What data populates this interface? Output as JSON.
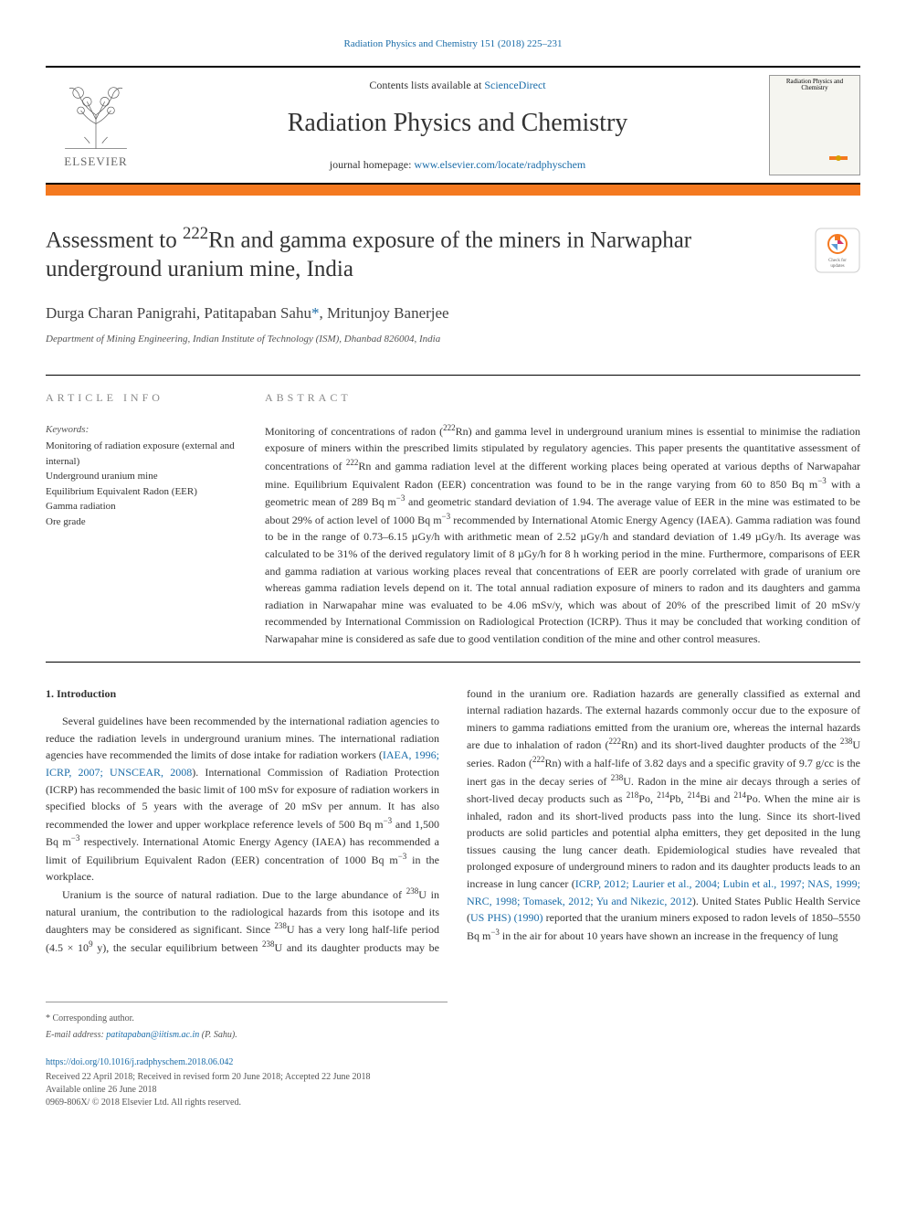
{
  "citation": "Radiation Physics and Chemistry 151 (2018) 225–231",
  "header": {
    "contents_pre": "Contents lists available at ",
    "contents_link": "ScienceDirect",
    "journal_name": "Radiation Physics and Chemistry",
    "homepage_pre": "journal homepage: ",
    "homepage_url": "www.elsevier.com/locate/radphyschem",
    "elsevier": "ELSEVIER",
    "cover_title": "Radiation Physics and Chemistry"
  },
  "title_html": "Assessment to <sup>222</sup>Rn and gamma exposure of the miners in Narwaphar underground uranium mine, India",
  "update_badge": "Check for updates",
  "authors_html": "Durga Charan Panigrahi, Patitapaban Sahu<span class=\"asterisk\">*</span>, Mritunjoy Banerjee",
  "affiliation": "Department of Mining Engineering, Indian Institute of Technology (ISM), Dhanbad 826004, India",
  "section_labels": {
    "article_info": "ARTICLE INFO",
    "abstract": "ABSTRACT"
  },
  "keywords": {
    "label": "Keywords:",
    "items": [
      "Monitoring of radiation exposure (external and internal)",
      "Underground uranium mine",
      "Equilibrium Equivalent Radon (EER)",
      "Gamma radiation",
      "Ore grade"
    ]
  },
  "abstract_html": "Monitoring of concentrations of radon (<sup>222</sup>Rn) and gamma level in underground uranium mines is essential to minimise the radiation exposure of miners within the prescribed limits stipulated by regulatory agencies. This paper presents the quantitative assessment of concentrations of <sup>222</sup>Rn and gamma radiation level at the different working places being operated at various depths of Narwapahar mine. Equilibrium Equivalent Radon (EER) concentration was found to be in the range varying from 60 to 850 Bq m<sup>−3</sup> with a geometric mean of 289 Bq m<sup>−3</sup> and geometric standard deviation of 1.94. The average value of EER in the mine was estimated to be about 29% of action level of 1000 Bq m<sup>−3</sup> recommended by International Atomic Energy Agency (IAEA). Gamma radiation was found to be in the range of 0.73–6.15 µGy/h with arithmetic mean of 2.52 µGy/h and standard deviation of 1.49 µGy/h. Its average was calculated to be 31% of the derived regulatory limit of 8 µGy/h for 8 h working period in the mine. Furthermore, comparisons of EER and gamma radiation at various working places reveal that concentrations of EER are poorly correlated with grade of uranium ore whereas gamma radiation levels depend on it. The total annual radiation exposure of miners to radon and its daughters and gamma radiation in Narwapahar mine was evaluated to be 4.06 mSv/y, which was about of 20% of the prescribed limit of 20 mSv/y recommended by International Commission on Radiological Protection (ICRP). Thus it may be concluded that working condition of Narwapahar mine is considered as safe due to good ventilation condition of the mine and other control measures.",
  "intro": {
    "heading": "1. Introduction",
    "p1_html": "Several guidelines have been recommended by the international radiation agencies to reduce the radiation levels in underground uranium mines. The international radiation agencies have recommended the limits of dose intake for radiation workers (<span class=\"cite-link\">IAEA, 1996; ICRP, 2007; UNSCEAR, 2008</span>). International Commission of Radiation Protection (ICRP) has recommended the basic limit of 100 mSv for exposure of radiation workers in specified blocks of 5 years with the average of 20 mSv per annum. It has also recommended the lower and upper workplace reference levels of 500 Bq m<sup>−3</sup> and 1,500 Bq m<sup>−3</sup> respectively. International Atomic Energy Agency (IAEA) has recommended a limit of Equilibrium Equivalent Radon (EER) concentration of 1000 Bq m<sup>−3</sup> in the workplace.",
    "p2_html": "Uranium is the source of natural radiation. Due to the large abundance of <sup>238</sup>U in natural uranium, the contribution to the radiological hazards from this isotope and its daughters may be considered as significant. Since <sup>238</sup>U has a very long half-life period (4.5 × 10<sup>9</sup> y), the secular equilibrium between <sup>238</sup>U and its daughter products may be found in the uranium ore. Radiation hazards are generally classified as external and internal radiation hazards. The external hazards commonly occur due to the exposure of miners to gamma radiations emitted from the uranium ore, whereas the internal hazards are due to inhalation of radon (<sup>222</sup>Rn) and its short-lived daughter products of the <sup>238</sup>U series. Radon (<sup>222</sup>Rn) with a half-life of 3.82 days and a specific gravity of 9.7 g/cc is the inert gas in the decay series of <sup>238</sup>U. Radon in the mine air decays through a series of short-lived decay products such as <sup>218</sup>Po, <sup>214</sup>Pb, <sup>214</sup>Bi and <sup>214</sup>Po. When the mine air is inhaled, radon and its short-lived products pass into the lung. Since its short-lived products are solid particles and potential alpha emitters, they get deposited in the lung tissues causing the lung cancer death. Epidemiological studies have revealed that prolonged exposure of underground miners to radon and its daughter products leads to an increase in lung cancer (<span class=\"cite-link\">ICRP, 2012; Laurier et al., 2004; Lubin et al., 1997; NAS, 1999; NRC, 1998; Tomasek, 2012; Yu and Nikezic, 2012</span>). United States Public Health Service (<span class=\"cite-link\">US PHS) (1990)</span> reported that the uranium miners exposed to radon levels of 1850–5550 Bq m<sup>−3</sup> in the air for about 10 years have shown an increase in the frequency of lung"
  },
  "footer": {
    "corr": "* Corresponding author.",
    "email_label": "E-mail address: ",
    "email": "patitapaban@iitism.ac.in",
    "email_post": " (P. Sahu).",
    "doi": "https://doi.org/10.1016/j.radphyschem.2018.06.042",
    "dates": "Received 22 April 2018; Received in revised form 20 June 2018; Accepted 22 June 2018",
    "available": "Available online 26 June 2018",
    "issn": "0969-806X/ © 2018 Elsevier Ltd. All rights reserved."
  },
  "colors": {
    "orange": "#f47920",
    "link_blue": "#1a6ca8",
    "text_gray": "#333333",
    "light_gray": "#888888"
  }
}
